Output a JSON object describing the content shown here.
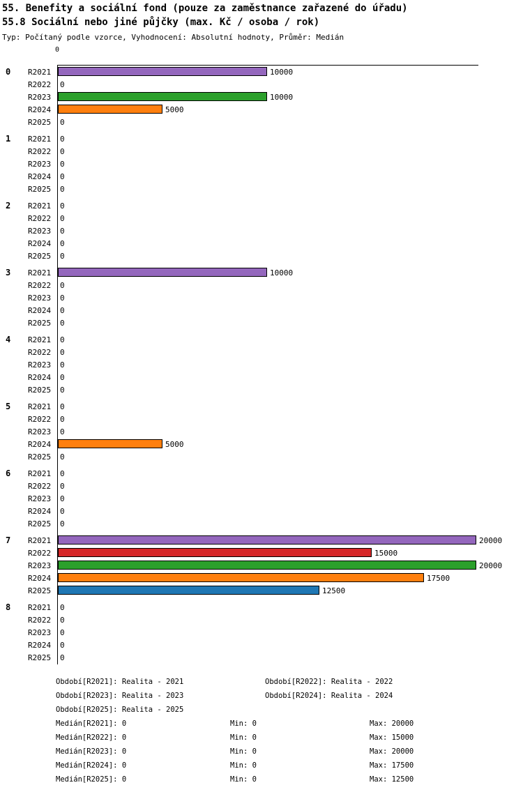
{
  "title": "55. Benefity a sociální fond (pouze za zaměstnance zařazené do úřadu)",
  "subtitle": "55.8 Sociální nebo jiné půjčky (max. Kč / osoba / rok)",
  "meta": "Typ: Počítaný podle vzorce, Vyhodnocení: Absolutní hodnoty, Průměr: Medián",
  "chart_data": {
    "type": "bar",
    "orientation": "horizontal",
    "origin_tick": "0",
    "xlim": [
      0,
      20000
    ],
    "grid": false,
    "years": [
      "R2021",
      "R2022",
      "R2023",
      "R2024",
      "R2025"
    ],
    "colors": {
      "R2021": "#9467bd",
      "R2022": "#d62728",
      "R2023": "#2ca02c",
      "R2024": "#ff7f0e",
      "R2025": "#1f77b4"
    },
    "groups": [
      {
        "label": "0",
        "values": [
          10000,
          0,
          10000,
          5000,
          0
        ]
      },
      {
        "label": "1",
        "values": [
          0,
          0,
          0,
          0,
          0
        ]
      },
      {
        "label": "2",
        "values": [
          0,
          0,
          0,
          0,
          0
        ]
      },
      {
        "label": "3",
        "values": [
          10000,
          0,
          0,
          0,
          0
        ]
      },
      {
        "label": "4",
        "values": [
          0,
          0,
          0,
          0,
          0
        ]
      },
      {
        "label": "5",
        "values": [
          0,
          0,
          0,
          5000,
          0
        ]
      },
      {
        "label": "6",
        "values": [
          0,
          0,
          0,
          0,
          0
        ]
      },
      {
        "label": "7",
        "values": [
          20000,
          15000,
          20000,
          17500,
          12500
        ]
      },
      {
        "label": "8",
        "values": [
          0,
          0,
          0,
          0,
          0
        ]
      }
    ]
  },
  "legend": {
    "period_rows": [
      [
        "Období[R2021]: Realita - 2021",
        "Období[R2022]: Realita - 2022"
      ],
      [
        "Období[R2023]: Realita - 2023",
        "Období[R2024]: Realita - 2024"
      ],
      [
        "Období[R2025]: Realita - 2025"
      ]
    ],
    "stats_rows": [
      [
        "Medián[R2021]: 0",
        "Min: 0",
        "Max: 20000"
      ],
      [
        "Medián[R2022]: 0",
        "Min: 0",
        "Max: 15000"
      ],
      [
        "Medián[R2023]: 0",
        "Min: 0",
        "Max: 20000"
      ],
      [
        "Medián[R2024]: 0",
        "Min: 0",
        "Max: 17500"
      ],
      [
        "Medián[R2025]: 0",
        "Min: 0",
        "Max: 12500"
      ]
    ]
  }
}
